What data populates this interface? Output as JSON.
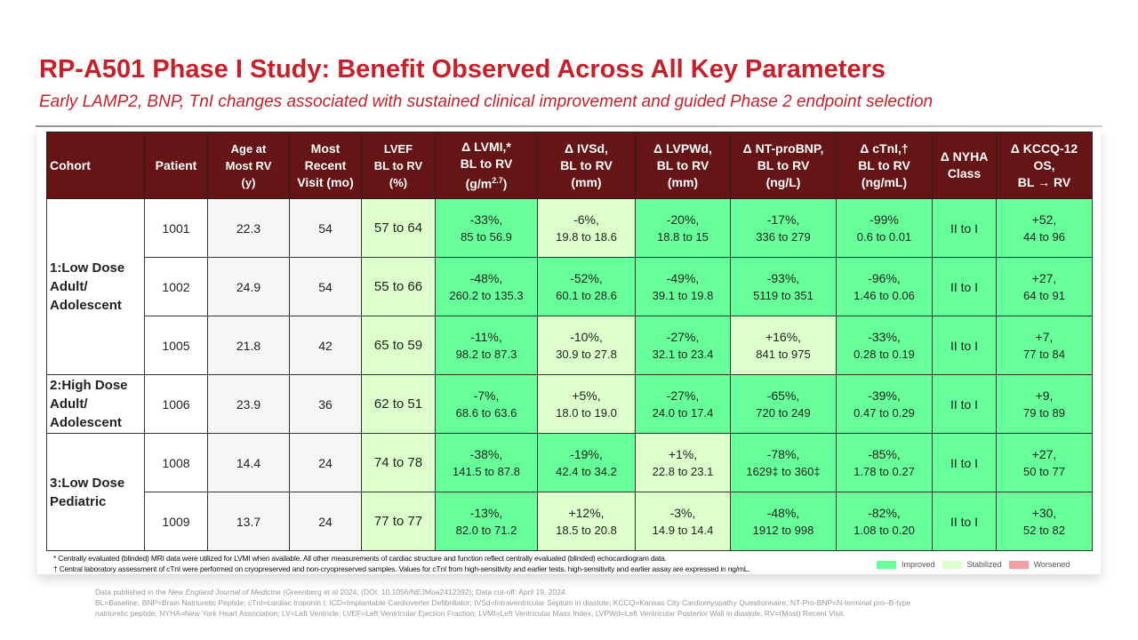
{
  "title": "RP-A501 Phase I Study: Benefit Observed Across All Key Parameters",
  "subtitle": "Early LAMP2, BNP, TnI changes associated with sustained clinical improvement and guided Phase 2 endpoint selection",
  "colors": {
    "header": "#651515",
    "improved": "#66ff99",
    "stabilized": "#ddffcc",
    "worsened": "#f0a0a0",
    "title": "#c8202a"
  },
  "headers": [
    "Cohort",
    "Patient",
    "Age at Most RV (y)",
    "Most Recent Visit (mo)",
    "LVEF BL to RV (%)",
    "Δ LVMI,* BL to RV (g/m2.7)",
    "Δ IVSd, BL to RV (mm)",
    "Δ LVPWd, BL to RV (mm)",
    "Δ NT-proBNP, BL to RV (ng/L)",
    "Δ cTnI,† BL to RV (ng/mL)",
    "Δ NYHA Class",
    "Δ KCCQ-12 OS, BL → RV"
  ],
  "cohorts": [
    {
      "label": "1:Low Dose Adult/ Adolescent",
      "rows": 3
    },
    {
      "label": "2:High Dose Adult/ Adolescent",
      "rows": 1
    },
    {
      "label": "3:Low Dose Pediatric",
      "rows": 2
    }
  ],
  "rows": [
    {
      "patient": "1001",
      "age": "22.3",
      "visit": "54",
      "cells": [
        [
          "57 to 64",
          "",
          "stab"
        ],
        [
          "-33%,",
          "85 to 56.9",
          "imp"
        ],
        [
          "-6%,",
          "19.8 to 18.6",
          "stab"
        ],
        [
          "-20%,",
          "18.8  to 15",
          "imp"
        ],
        [
          "-17%,",
          "336 to 279",
          "imp"
        ],
        [
          "-99%",
          "0.6 to 0.01",
          "imp"
        ],
        [
          "II to I",
          "",
          "imp"
        ],
        [
          "+52,",
          "44 to 96",
          "imp"
        ]
      ]
    },
    {
      "patient": "1002",
      "age": "24.9",
      "visit": "54",
      "cells": [
        [
          "55 to 66",
          "",
          "stab"
        ],
        [
          "-48%,",
          "260.2 to 135.3",
          "imp"
        ],
        [
          "-52%,",
          "60.1 to 28.6",
          "imp"
        ],
        [
          "-49%,",
          "39.1 to 19.8",
          "imp"
        ],
        [
          "-93%,",
          "5119 to 351",
          "imp"
        ],
        [
          "-96%,",
          "1.46 to 0.06",
          "imp"
        ],
        [
          "II to I",
          "",
          "imp"
        ],
        [
          "+27,",
          "64 to 91",
          "imp"
        ]
      ]
    },
    {
      "patient": "1005",
      "age": "21.8",
      "visit": "42",
      "cells": [
        [
          "65 to 59",
          "",
          "stab"
        ],
        [
          "-11%,",
          "98.2 to 87.3",
          "imp"
        ],
        [
          "-10%,",
          "30.9 to 27.8",
          "stab"
        ],
        [
          "-27%,",
          "32.1 to 23.4",
          "imp"
        ],
        [
          "+16%,",
          "841 to 975",
          "stab"
        ],
        [
          "-33%,",
          "0.28 to 0.19",
          "imp"
        ],
        [
          "II to I",
          "",
          "imp"
        ],
        [
          "+7,",
          "77 to 84",
          "imp"
        ]
      ]
    },
    {
      "patient": "1006",
      "age": "23.9",
      "visit": "36",
      "cells": [
        [
          "62 to 51",
          "",
          "stab"
        ],
        [
          "-7%,",
          "68.6 to 63.6",
          "imp"
        ],
        [
          "+5%,",
          "18.0 to 19.0",
          "stab"
        ],
        [
          "-27%,",
          "24.0 to 17.4",
          "imp"
        ],
        [
          "-65%,",
          "720 to 249",
          "imp"
        ],
        [
          "-39%,",
          "0.47 to 0.29",
          "imp"
        ],
        [
          "II to I",
          "",
          "imp"
        ],
        [
          "+9,",
          "79 to 89",
          "imp"
        ]
      ]
    },
    {
      "patient": "1008",
      "age": "14.4",
      "visit": "24",
      "cells": [
        [
          "74 to 78",
          "",
          "stab"
        ],
        [
          "-38%,",
          "141.5 to 87.8",
          "imp"
        ],
        [
          "-19%,",
          "42.4 to 34.2",
          "imp"
        ],
        [
          "+1%,",
          "22.8 to 23.1",
          "stab"
        ],
        [
          "-78%,",
          "1629‡ to 360‡",
          "imp"
        ],
        [
          "-85%,",
          "1.78 to 0.27",
          "imp"
        ],
        [
          "II to I",
          "",
          "imp"
        ],
        [
          "+27,",
          "50 to 77",
          "imp"
        ]
      ]
    },
    {
      "patient": "1009",
      "age": "13.7",
      "visit": "24",
      "cells": [
        [
          "77 to 77",
          "",
          "stab"
        ],
        [
          "-13%,",
          "82.0 to 71.2",
          "imp"
        ],
        [
          "+12%,",
          "18.5 to 20.8",
          "stab"
        ],
        [
          "-3%,",
          "14.9 to 14.4",
          "stab"
        ],
        [
          "-48%,",
          "1912 to 998",
          "imp"
        ],
        [
          "-82%,",
          "1.08 to 0.20",
          "imp"
        ],
        [
          "II to I",
          "",
          "imp"
        ],
        [
          "+30,",
          "52 to 82",
          "imp"
        ]
      ]
    }
  ],
  "notes": [
    "* Centrally evaluated (blinded) MRI data were utilized for LVMI when available. All other measurements of cardiac structure and function reflect centrally evaluated (blinded) echocardiogram data.",
    "† Central laboratory assessment of cTnI were performed on cryopreserved and non-cryopreserved samples. Values for cTnI from high-sensitivity and earlier tests. high-sensitivity and earlier assay are expressed in ng/mL."
  ],
  "legend": [
    "Improved",
    "Stabilized",
    "Worsened"
  ],
  "footer": {
    "pub_prefix": "Data published in the ",
    "journal": "New England Journal of Medicine",
    "pub_suffix": " (Greenberg et al 2024; (DOI: 10.1056/NEJMoa2412392); Data cut-off: April 19, 2024.",
    "abbrev": "BL=Baseline; BNP=Brain Natriuretic Peptide; cTnI=cardiac troponin I; ICD=Implantable Cardioverter Defibrillator; IVSd=Intraventricular Septum in diastole; KCCQ=Kansas City Cardiomyopathy Questionnaire; NT-Pro-BNP=N-terminal pro–B-type natriuretic peptide; NYHA=New York Heart Association; LV=Left Ventricle; LVEF=Left Ventricular Ejection Fraction; LVMI=Left Ventricular Mass Index, LVPWd=Left Ventricular Posterior Wall in diastole, RV=(Most) Recent Visit."
  }
}
